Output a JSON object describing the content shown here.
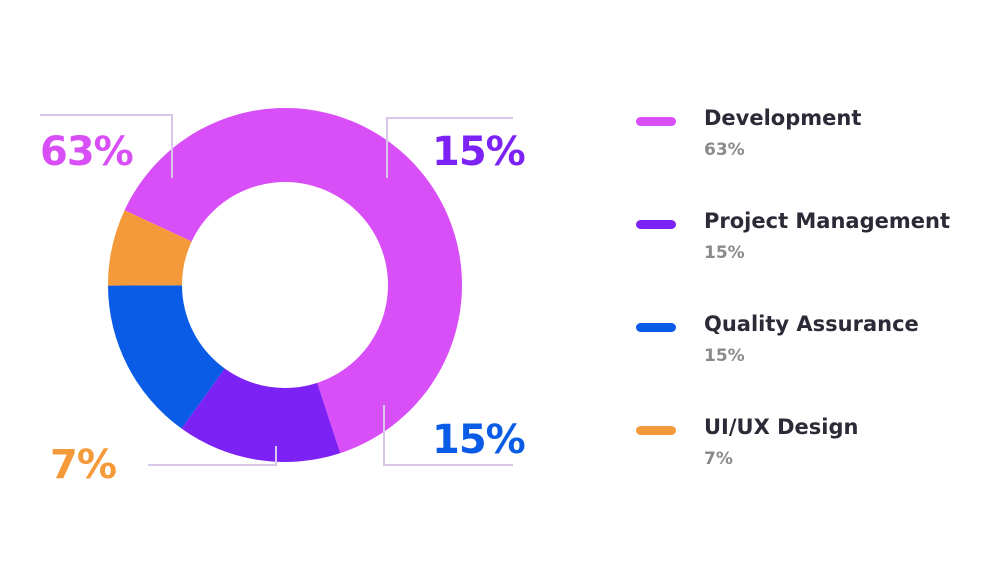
{
  "chart_data": {
    "type": "pie",
    "donut": true,
    "slices": [
      {
        "label": "Development",
        "value": 63,
        "display": "63%",
        "color": "#d94ff7"
      },
      {
        "label": "Project Management",
        "value": 15,
        "display": "15%",
        "color": "#7c22f5"
      },
      {
        "label": "Quality Assurance",
        "value": 15,
        "display": "15%",
        "color": "#0a5ce6"
      },
      {
        "label": "UI/UX Design",
        "value": 7,
        "display": "7%",
        "color": "#f49a3a"
      }
    ],
    "legend_placement": "right",
    "callout_line_color": "#d9c7ea"
  }
}
